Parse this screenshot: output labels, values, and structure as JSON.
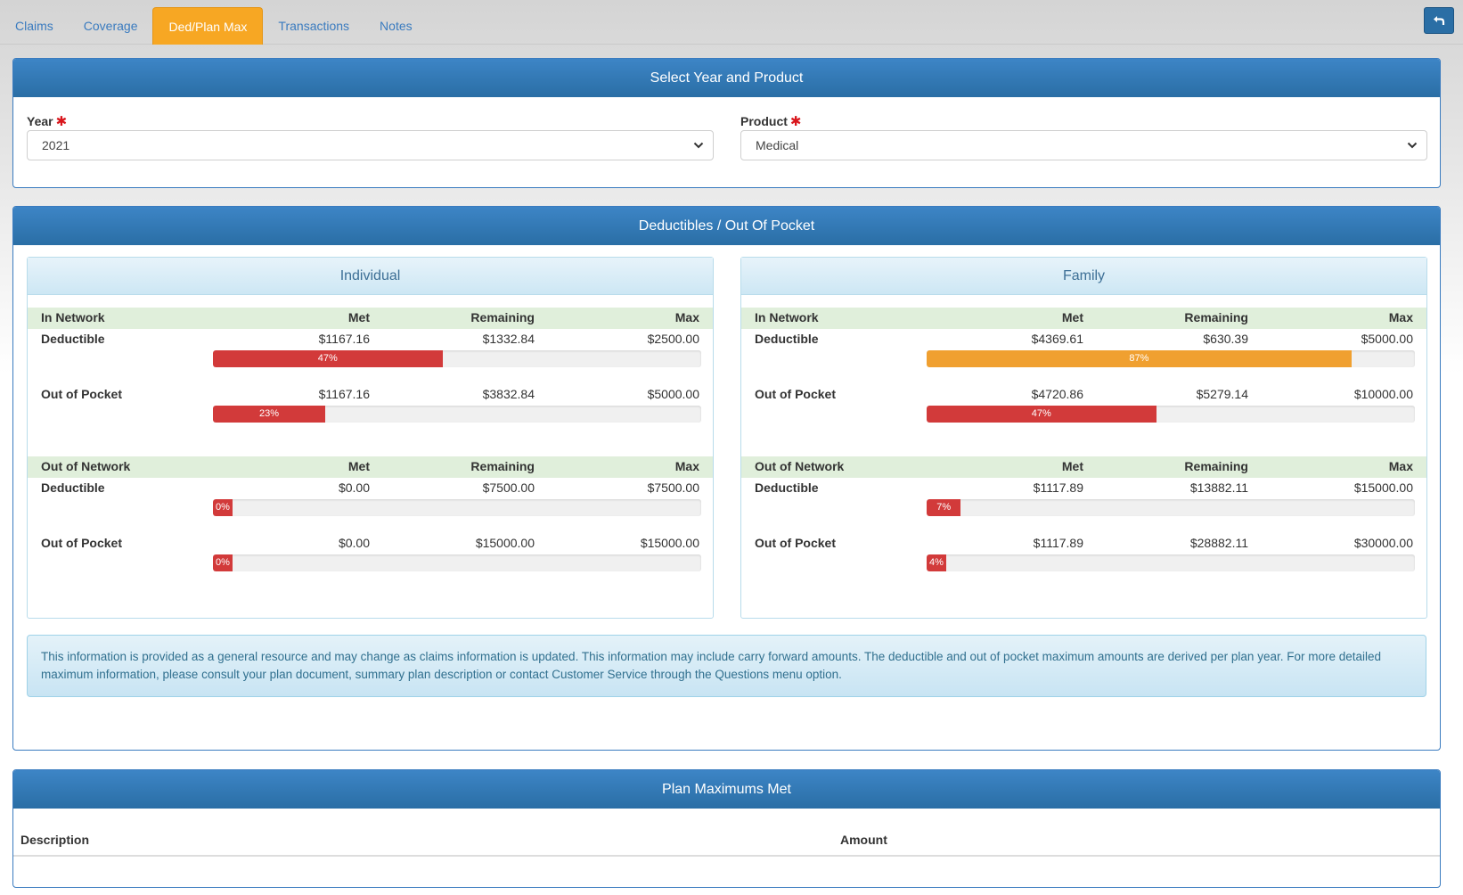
{
  "tabs": [
    {
      "label": "Claims"
    },
    {
      "label": "Coverage"
    },
    {
      "label": "Ded/Plan Max"
    },
    {
      "label": "Transactions"
    },
    {
      "label": "Notes"
    }
  ],
  "active_tab": 2,
  "select_panel": {
    "title": "Select Year and Product",
    "year_label": "Year",
    "year_value": "2021",
    "product_label": "Product",
    "product_value": "Medical",
    "required_mark": "✱"
  },
  "deductibles": {
    "title": "Deductibles / Out Of Pocket",
    "col_met": "Met",
    "col_remaining": "Remaining",
    "col_max": "Max",
    "in_network_label": "In Network",
    "out_network_label": "Out of Network",
    "deductible_label": "Deductible",
    "oop_label": "Out of Pocket",
    "individual": {
      "title": "Individual",
      "in": {
        "ded": {
          "met": "$1167.16",
          "remaining": "$1332.84",
          "max": "$2500.00",
          "pct": 47,
          "pct_label": "47%",
          "color": "#d23a3a"
        },
        "oop": {
          "met": "$1167.16",
          "remaining": "$3832.84",
          "max": "$5000.00",
          "pct": 23,
          "pct_label": "23%",
          "color": "#d23a3a"
        }
      },
      "out": {
        "ded": {
          "met": "$0.00",
          "remaining": "$7500.00",
          "max": "$7500.00",
          "pct": 0,
          "pct_label": "0%",
          "color": "#d23a3a"
        },
        "oop": {
          "met": "$0.00",
          "remaining": "$15000.00",
          "max": "$15000.00",
          "pct": 0,
          "pct_label": "0%",
          "color": "#d23a3a"
        }
      }
    },
    "family": {
      "title": "Family",
      "in": {
        "ded": {
          "met": "$4369.61",
          "remaining": "$630.39",
          "max": "$5000.00",
          "pct": 87,
          "pct_label": "87%",
          "color": "#f0a030"
        },
        "oop": {
          "met": "$4720.86",
          "remaining": "$5279.14",
          "max": "$10000.00",
          "pct": 47,
          "pct_label": "47%",
          "color": "#d23a3a"
        }
      },
      "out": {
        "ded": {
          "met": "$1117.89",
          "remaining": "$13882.11",
          "max": "$15000.00",
          "pct": 7,
          "pct_label": "7%",
          "color": "#d23a3a"
        },
        "oop": {
          "met": "$1117.89",
          "remaining": "$28882.11",
          "max": "$30000.00",
          "pct": 4,
          "pct_label": "4%",
          "color": "#d23a3a"
        }
      }
    },
    "info_text": "This information is provided as a general resource and may change as claims information is updated. This information may include carry forward amounts. The deductible and out of pocket maximum amounts are derived per plan year. For more detailed maximum information, please consult your plan document, summary plan description or contact Customer Service through the Questions menu option."
  },
  "plan_max": {
    "title": "Plan Maximums Met",
    "col_description": "Description",
    "col_amount": "Amount"
  },
  "icons": {
    "back": "return-arrow-icon",
    "chevron": "chevron-down-icon"
  }
}
